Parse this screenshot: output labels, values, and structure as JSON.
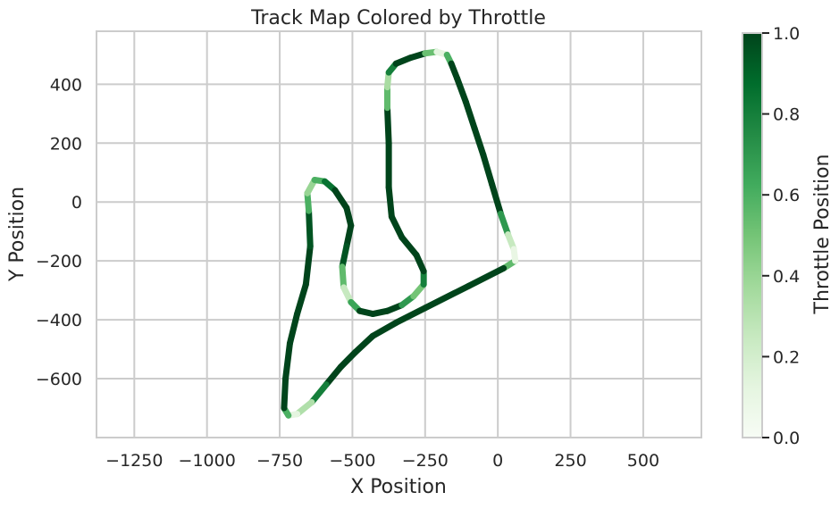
{
  "chart_data": {
    "type": "scatter",
    "title": "Track Map Colored by Throttle",
    "xlabel": "X Position",
    "ylabel": "Y Position",
    "xlim": [
      -1380,
      700
    ],
    "ylim": [
      -800,
      580
    ],
    "xticks": [
      -1250,
      -1000,
      -750,
      -500,
      -250,
      0,
      250,
      500
    ],
    "yticks": [
      -600,
      -400,
      -200,
      0,
      200,
      400
    ],
    "xtick_labels": [
      "−1250",
      "−1000",
      "−750",
      "−500",
      "−250",
      "0",
      "250",
      "500"
    ],
    "ytick_labels": [
      "−600",
      "−400",
      "−200",
      "0",
      "200",
      "400"
    ],
    "grid": true,
    "colormap": "Greens",
    "colorbar": {
      "label": "Throttle Position",
      "range": [
        0.0,
        1.0
      ],
      "ticks": [
        0.0,
        0.2,
        0.4,
        0.6,
        0.8,
        1.0
      ],
      "tick_labels": [
        "0.0",
        "0.2",
        "0.4",
        "0.6",
        "0.8",
        "1.0"
      ]
    },
    "track_points": [
      {
        "x": 60,
        "y": -200,
        "throttle": 0.1
      },
      {
        "x": 20,
        "y": -225,
        "throttle": 1.0
      },
      {
        "x": -100,
        "y": -285,
        "throttle": 1.0
      },
      {
        "x": -250,
        "y": -360,
        "throttle": 1.0
      },
      {
        "x": -350,
        "y": -410,
        "throttle": 1.0
      },
      {
        "x": -430,
        "y": -455,
        "throttle": 1.0
      },
      {
        "x": -490,
        "y": -510,
        "throttle": 1.0
      },
      {
        "x": -540,
        "y": -560,
        "throttle": 1.0
      },
      {
        "x": -590,
        "y": -620,
        "throttle": 1.0
      },
      {
        "x": -640,
        "y": -680,
        "throttle": 0.6
      },
      {
        "x": -690,
        "y": -720,
        "throttle": 0.05
      },
      {
        "x": -720,
        "y": -725,
        "throttle": 0.2
      },
      {
        "x": -735,
        "y": -700,
        "throttle": 1.0
      },
      {
        "x": -730,
        "y": -600,
        "throttle": 1.0
      },
      {
        "x": -715,
        "y": -480,
        "throttle": 1.0
      },
      {
        "x": -690,
        "y": -380,
        "throttle": 1.0
      },
      {
        "x": -660,
        "y": -280,
        "throttle": 1.0
      },
      {
        "x": -645,
        "y": -150,
        "throttle": 1.0
      },
      {
        "x": -650,
        "y": -30,
        "throttle": 0.9
      },
      {
        "x": -655,
        "y": 30,
        "throttle": 0.3
      },
      {
        "x": -630,
        "y": 75,
        "throttle": 0.5
      },
      {
        "x": -595,
        "y": 70,
        "throttle": 0.7
      },
      {
        "x": -560,
        "y": 40,
        "throttle": 1.0
      },
      {
        "x": -520,
        "y": -20,
        "throttle": 1.0
      },
      {
        "x": -505,
        "y": -80,
        "throttle": 1.0
      },
      {
        "x": -520,
        "y": -150,
        "throttle": 1.0
      },
      {
        "x": -535,
        "y": -220,
        "throttle": 0.9
      },
      {
        "x": -530,
        "y": -290,
        "throttle": 0.2
      },
      {
        "x": -505,
        "y": -340,
        "throttle": 0.3
      },
      {
        "x": -475,
        "y": -370,
        "throttle": 1.0
      },
      {
        "x": -430,
        "y": -380,
        "throttle": 1.0
      },
      {
        "x": -380,
        "y": -370,
        "throttle": 1.0
      },
      {
        "x": -330,
        "y": -350,
        "throttle": 1.0
      },
      {
        "x": -290,
        "y": -320,
        "throttle": 0.4
      },
      {
        "x": -255,
        "y": -280,
        "throttle": 0.6
      },
      {
        "x": -255,
        "y": -235,
        "throttle": 1.0
      },
      {
        "x": -280,
        "y": -180,
        "throttle": 1.0
      },
      {
        "x": -330,
        "y": -120,
        "throttle": 1.0
      },
      {
        "x": -365,
        "y": -50,
        "throttle": 1.0
      },
      {
        "x": -375,
        "y": 50,
        "throttle": 1.0
      },
      {
        "x": -375,
        "y": 200,
        "throttle": 1.0
      },
      {
        "x": -380,
        "y": 320,
        "throttle": 1.0
      },
      {
        "x": -380,
        "y": 390,
        "throttle": 0.1
      },
      {
        "x": -375,
        "y": 440,
        "throttle": 0.6
      },
      {
        "x": -350,
        "y": 470,
        "throttle": 1.0
      },
      {
        "x": -300,
        "y": 490,
        "throttle": 1.0
      },
      {
        "x": -250,
        "y": 505,
        "throttle": 1.0
      },
      {
        "x": -210,
        "y": 510,
        "throttle": 0.05
      },
      {
        "x": -175,
        "y": 500,
        "throttle": 0.2
      },
      {
        "x": -160,
        "y": 470,
        "throttle": 1.0
      },
      {
        "x": -140,
        "y": 420,
        "throttle": 1.0
      },
      {
        "x": -110,
        "y": 340,
        "throttle": 1.0
      },
      {
        "x": -80,
        "y": 250,
        "throttle": 1.0
      },
      {
        "x": -50,
        "y": 160,
        "throttle": 1.0
      },
      {
        "x": -20,
        "y": 60,
        "throttle": 1.0
      },
      {
        "x": 10,
        "y": -40,
        "throttle": 1.0
      },
      {
        "x": 35,
        "y": -110,
        "throttle": 0.4
      },
      {
        "x": 55,
        "y": -160,
        "throttle": 0.1
      },
      {
        "x": 60,
        "y": -200,
        "throttle": 0.1
      }
    ]
  }
}
